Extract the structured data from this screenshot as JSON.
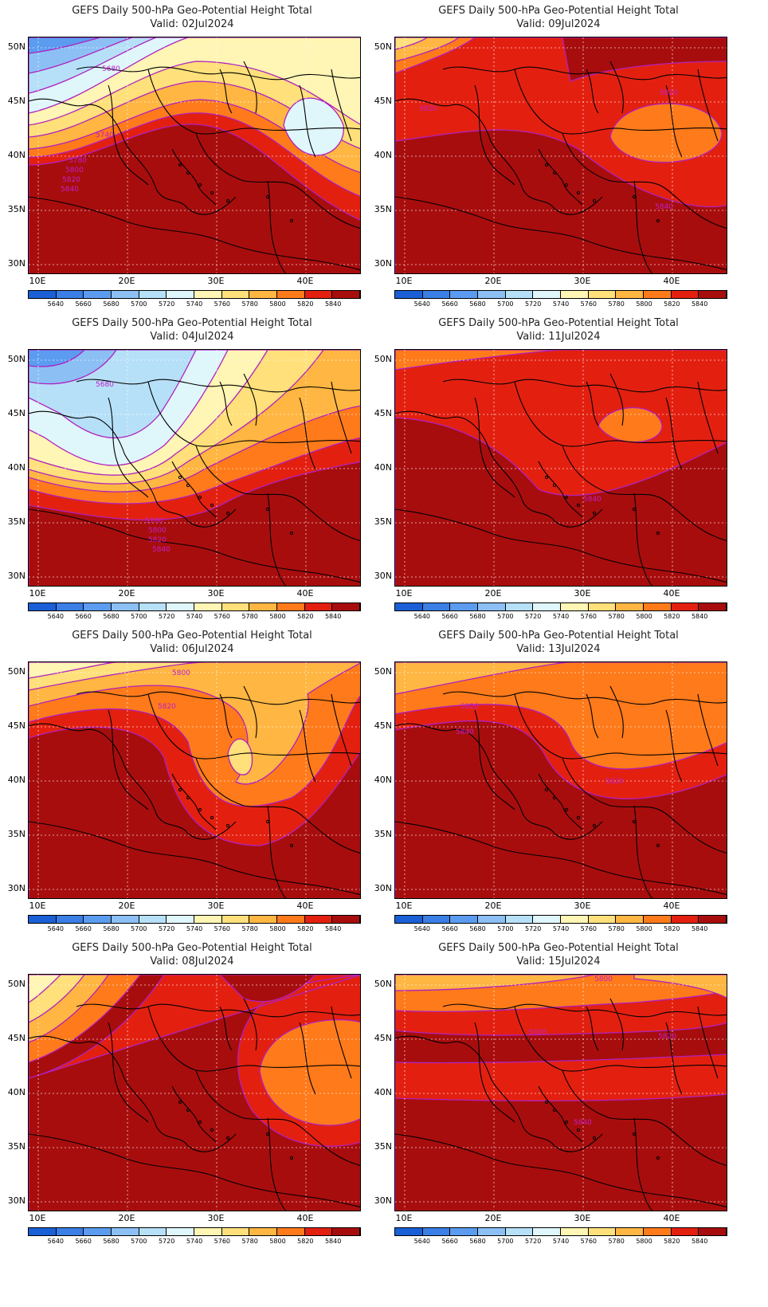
{
  "figure": {
    "panel_title": "GEFS Daily 500-hPa Geo-Potential Height Total",
    "valid_prefix": "Valid:"
  },
  "axes": {
    "lat_labels": [
      "50N",
      "45N",
      "40N",
      "35N",
      "30N"
    ],
    "lon_labels": [
      "10E",
      "20E",
      "30E",
      "40E"
    ]
  },
  "colorbar": {
    "labels": [
      "5640",
      "5660",
      "5680",
      "5700",
      "5720",
      "5740",
      "5760",
      "5780",
      "5800",
      "5820",
      "5840"
    ],
    "colors": [
      "#1a5fd6",
      "#3a7ee6",
      "#5b9cf0",
      "#8cc0f5",
      "#b6e0f8",
      "#dff6fb",
      "#fff5b4",
      "#ffe07a",
      "#ffb642",
      "#ff7a1a",
      "#e32010",
      "#a80d0d"
    ]
  },
  "panels": [
    {
      "valid": "02Jul2024",
      "contour_labels": [
        "5680",
        "5740",
        "5780",
        "5800",
        "5820",
        "5840"
      ]
    },
    {
      "valid": "09Jul2024",
      "contour_labels": [
        "5820",
        "5820",
        "5840"
      ]
    },
    {
      "valid": "04Jul2024",
      "contour_labels": [
        "5680",
        "5780",
        "5800",
        "5820",
        "5840"
      ]
    },
    {
      "valid": "11Jul2024",
      "contour_labels": [
        "5840"
      ]
    },
    {
      "valid": "06Jul2024",
      "contour_labels": [
        "5800",
        "5820"
      ]
    },
    {
      "valid": "13Jul2024",
      "contour_labels": [
        "5820",
        "5840",
        "5820"
      ]
    },
    {
      "valid": "08Jul2024",
      "contour_labels": []
    },
    {
      "valid": "15Jul2024",
      "contour_labels": [
        "5800",
        "5820",
        "5820",
        "5840"
      ]
    }
  ]
}
